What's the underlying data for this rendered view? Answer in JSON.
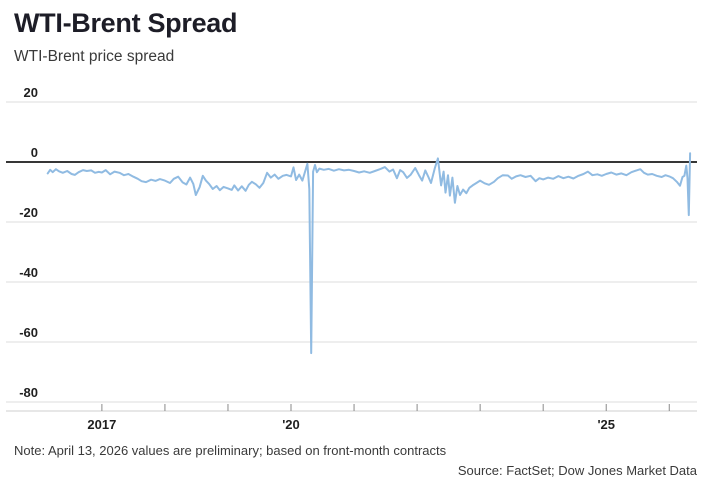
{
  "header": {
    "title": "WTI-Brent Spread",
    "subtitle": "WTI-Brent price spread"
  },
  "footer": {
    "note": "Note: April 13, 2026 values are preliminary; based on front-month contracts",
    "source": "Source: FactSet; Dow Jones Market Data"
  },
  "colors": {
    "line": "#90bbe2",
    "zero_line": "#1a1a1a",
    "gridline": "#dcdcdc",
    "axis_baseline": "#cfcfcf",
    "tick": "#8a8a8a",
    "tick_label": "#1f1f1f",
    "title": "#1d1d27",
    "footnote": "#3a3a3a",
    "background": "#ffffff"
  },
  "chart_data": {
    "type": "line",
    "title": "WTI-Brent Spread",
    "subtitle": "WTI-Brent price spread",
    "xlabel": "",
    "ylabel": "",
    "xlim": [
      2016.05,
      2026.44
    ],
    "ylim": [
      -80,
      20
    ],
    "y_ticks": [
      20,
      0,
      -20,
      -40,
      -60,
      -80
    ],
    "x_ticks": [
      2017,
      2018,
      2019,
      2020,
      2021,
      2022,
      2023,
      2024,
      2025,
      2026
    ],
    "x_tick_labels": [
      {
        "year": 2017,
        "label": "2017"
      },
      {
        "year": 2020,
        "label": "'20"
      },
      {
        "year": 2025,
        "label": "'25"
      }
    ],
    "grid": "horizontal",
    "zero_baseline": true,
    "legend": "none",
    "series": [
      {
        "name": "WTI-Brent price spread",
        "points": [
          [
            2016.14,
            -3.8
          ],
          [
            2016.18,
            -2.6
          ],
          [
            2016.22,
            -3.4
          ],
          [
            2016.27,
            -2.4
          ],
          [
            2016.32,
            -3.1
          ],
          [
            2016.38,
            -3.6
          ],
          [
            2016.45,
            -3.0
          ],
          [
            2016.52,
            -4.0
          ],
          [
            2016.57,
            -4.3
          ],
          [
            2016.63,
            -3.4
          ],
          [
            2016.7,
            -2.7
          ],
          [
            2016.76,
            -3.0
          ],
          [
            2016.83,
            -2.8
          ],
          [
            2016.89,
            -3.6
          ],
          [
            2016.95,
            -3.3
          ],
          [
            2017.0,
            -3.5
          ],
          [
            2017.06,
            -2.7
          ],
          [
            2017.13,
            -4.1
          ],
          [
            2017.2,
            -3.2
          ],
          [
            2017.28,
            -3.6
          ],
          [
            2017.35,
            -4.4
          ],
          [
            2017.42,
            -4.0
          ],
          [
            2017.5,
            -4.9
          ],
          [
            2017.57,
            -5.6
          ],
          [
            2017.63,
            -6.4
          ],
          [
            2017.7,
            -6.7
          ],
          [
            2017.78,
            -5.9
          ],
          [
            2017.85,
            -6.3
          ],
          [
            2017.92,
            -5.7
          ],
          [
            2018.0,
            -6.2
          ],
          [
            2018.08,
            -7.0
          ],
          [
            2018.14,
            -5.6
          ],
          [
            2018.21,
            -4.9
          ],
          [
            2018.28,
            -6.8
          ],
          [
            2018.34,
            -7.5
          ],
          [
            2018.4,
            -5.2
          ],
          [
            2018.45,
            -7.3
          ],
          [
            2018.49,
            -11.0
          ],
          [
            2018.55,
            -8.4
          ],
          [
            2018.6,
            -4.6
          ],
          [
            2018.65,
            -6.2
          ],
          [
            2018.7,
            -7.3
          ],
          [
            2018.76,
            -9.0
          ],
          [
            2018.82,
            -8.0
          ],
          [
            2018.87,
            -9.4
          ],
          [
            2018.93,
            -8.3
          ],
          [
            2019.0,
            -8.8
          ],
          [
            2019.06,
            -9.3
          ],
          [
            2019.1,
            -7.8
          ],
          [
            2019.16,
            -9.5
          ],
          [
            2019.22,
            -8.1
          ],
          [
            2019.28,
            -9.6
          ],
          [
            2019.33,
            -7.6
          ],
          [
            2019.38,
            -6.6
          ],
          [
            2019.44,
            -7.4
          ],
          [
            2019.5,
            -8.6
          ],
          [
            2019.56,
            -7.0
          ],
          [
            2019.62,
            -3.6
          ],
          [
            2019.68,
            -5.2
          ],
          [
            2019.74,
            -4.2
          ],
          [
            2019.8,
            -5.6
          ],
          [
            2019.87,
            -4.6
          ],
          [
            2019.93,
            -4.3
          ],
          [
            2020.0,
            -4.8
          ],
          [
            2020.04,
            -1.8
          ],
          [
            2020.08,
            -6.0
          ],
          [
            2020.13,
            -4.2
          ],
          [
            2020.18,
            -6.2
          ],
          [
            2020.22,
            -3.4
          ],
          [
            2020.26,
            -0.6
          ],
          [
            2020.29,
            -9.0
          ],
          [
            2020.32,
            -63.7
          ],
          [
            2020.35,
            -3.2
          ],
          [
            2020.38,
            -1.0
          ],
          [
            2020.41,
            -3.4
          ],
          [
            2020.45,
            -2.2
          ],
          [
            2020.52,
            -2.6
          ],
          [
            2020.6,
            -2.3
          ],
          [
            2020.68,
            -2.9
          ],
          [
            2020.76,
            -2.4
          ],
          [
            2020.84,
            -2.8
          ],
          [
            2020.92,
            -2.6
          ],
          [
            2021.0,
            -3.0
          ],
          [
            2021.08,
            -3.5
          ],
          [
            2021.16,
            -3.1
          ],
          [
            2021.25,
            -3.6
          ],
          [
            2021.33,
            -3.0
          ],
          [
            2021.41,
            -2.4
          ],
          [
            2021.49,
            -1.7
          ],
          [
            2021.56,
            -3.2
          ],
          [
            2021.62,
            -2.5
          ],
          [
            2021.68,
            -5.4
          ],
          [
            2021.73,
            -2.7
          ],
          [
            2021.78,
            -3.4
          ],
          [
            2021.84,
            -5.3
          ],
          [
            2021.9,
            -4.2
          ],
          [
            2021.97,
            -2.0
          ],
          [
            2022.03,
            -4.4
          ],
          [
            2022.08,
            -6.2
          ],
          [
            2022.13,
            -2.8
          ],
          [
            2022.18,
            -5.0
          ],
          [
            2022.22,
            -7.0
          ],
          [
            2022.28,
            -2.2
          ],
          [
            2022.33,
            1.2
          ],
          [
            2022.38,
            -7.8
          ],
          [
            2022.42,
            -3.2
          ],
          [
            2022.45,
            -10.2
          ],
          [
            2022.49,
            -4.4
          ],
          [
            2022.52,
            -11.2
          ],
          [
            2022.56,
            -5.2
          ],
          [
            2022.6,
            -13.6
          ],
          [
            2022.64,
            -8.0
          ],
          [
            2022.68,
            -11.0
          ],
          [
            2022.73,
            -9.2
          ],
          [
            2022.78,
            -10.4
          ],
          [
            2022.83,
            -8.6
          ],
          [
            2022.88,
            -7.8
          ],
          [
            2022.94,
            -7.0
          ],
          [
            2023.0,
            -6.2
          ],
          [
            2023.07,
            -7.1
          ],
          [
            2023.14,
            -7.6
          ],
          [
            2023.22,
            -6.6
          ],
          [
            2023.28,
            -5.4
          ],
          [
            2023.36,
            -4.4
          ],
          [
            2023.44,
            -4.5
          ],
          [
            2023.5,
            -5.6
          ],
          [
            2023.57,
            -4.8
          ],
          [
            2023.64,
            -4.4
          ],
          [
            2023.72,
            -5.0
          ],
          [
            2023.8,
            -4.6
          ],
          [
            2023.88,
            -6.4
          ],
          [
            2023.94,
            -5.4
          ],
          [
            2024.0,
            -5.8
          ],
          [
            2024.08,
            -5.2
          ],
          [
            2024.16,
            -5.6
          ],
          [
            2024.24,
            -4.7
          ],
          [
            2024.32,
            -5.4
          ],
          [
            2024.4,
            -4.9
          ],
          [
            2024.48,
            -5.5
          ],
          [
            2024.56,
            -4.6
          ],
          [
            2024.64,
            -4.0
          ],
          [
            2024.71,
            -3.2
          ],
          [
            2024.78,
            -4.4
          ],
          [
            2024.86,
            -4.1
          ],
          [
            2024.93,
            -4.6
          ],
          [
            2025.0,
            -4.0
          ],
          [
            2025.08,
            -3.5
          ],
          [
            2025.16,
            -4.2
          ],
          [
            2025.24,
            -3.8
          ],
          [
            2025.32,
            -4.4
          ],
          [
            2025.4,
            -3.4
          ],
          [
            2025.48,
            -2.8
          ],
          [
            2025.54,
            -2.4
          ],
          [
            2025.6,
            -3.6
          ],
          [
            2025.66,
            -4.2
          ],
          [
            2025.73,
            -4.0
          ],
          [
            2025.8,
            -4.6
          ],
          [
            2025.88,
            -5.0
          ],
          [
            2025.94,
            -4.4
          ],
          [
            2026.0,
            -4.8
          ],
          [
            2026.06,
            -5.4
          ],
          [
            2026.12,
            -6.6
          ],
          [
            2026.17,
            -7.9
          ],
          [
            2026.21,
            -5.0
          ],
          [
            2026.24,
            -4.6
          ],
          [
            2026.27,
            -1.2
          ],
          [
            2026.29,
            -5.4
          ],
          [
            2026.31,
            -17.7
          ],
          [
            2026.33,
            2.9
          ]
        ]
      }
    ]
  }
}
